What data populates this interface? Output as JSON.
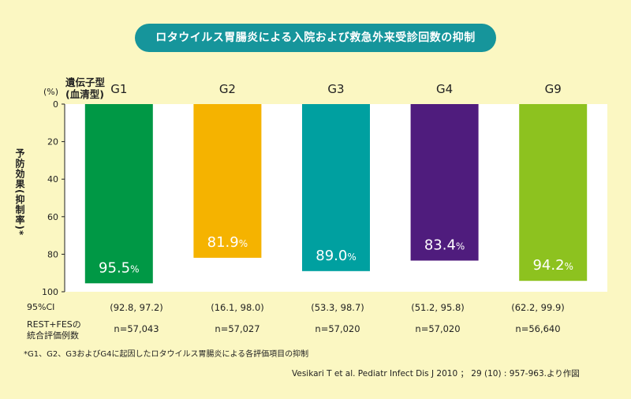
{
  "title": "ロタウイルス胃腸炎による入院および救急外来受診回数の抑制",
  "y_unit": "(%)",
  "genotype_label_line1": "遺伝子型",
  "genotype_label_line2": "(血清型)",
  "ylabel": "予防効果(抑制率)*",
  "ci_label": "95%CI",
  "n_label_line1": "REST+FESの",
  "n_label_line2": "統合評価例数",
  "groups": [
    {
      "name": "G1",
      "value_text": "95.5",
      "ci": "(92.8, 97.2)",
      "n": "n=57,043"
    },
    {
      "name": "G2",
      "value_text": "81.9",
      "ci": "(16.1, 98.0)",
      "n": "n=57,027"
    },
    {
      "name": "G3",
      "value_text": "89.0",
      "ci": "(53.3, 98.7)",
      "n": "n=57,020"
    },
    {
      "name": "G4",
      "value_text": "83.4",
      "ci": "(51.2, 95.8)",
      "n": "n=57,020"
    },
    {
      "name": "G9",
      "value_text": "94.2",
      "ci": "(62.2, 99.9)",
      "n": "n=56,640"
    }
  ],
  "percent_sign": "%",
  "footnote": "*G1、G2、G3およびG4に起因したロタウイルス胃腸炎による各評価項目の抑制",
  "source": "Vesikari T et al. Pediatr Infect Dis J 2010 ； 29 (10) : 957-963.より作図",
  "colors": {
    "background": "#fbf7c2",
    "title_bg": "#16959b",
    "plot_bg": "#ffffff",
    "G1": "#009845",
    "G2": "#f5b300",
    "G3": "#00a0a0",
    "G4": "#4f1c7d",
    "G9": "#8dc21f"
  },
  "chart_data": {
    "type": "bar",
    "categories": [
      "G1",
      "G2",
      "G3",
      "G4",
      "G9"
    ],
    "values": [
      95.5,
      81.9,
      89.0,
      83.4,
      94.2
    ],
    "ylabel": "予防効果(抑制率)*",
    "xlabel": "遺伝子型(血清型)",
    "ylim": [
      0,
      100
    ],
    "y_inverted": true,
    "yticks": [
      0,
      20,
      40,
      60,
      80,
      100
    ],
    "grid": false
  }
}
